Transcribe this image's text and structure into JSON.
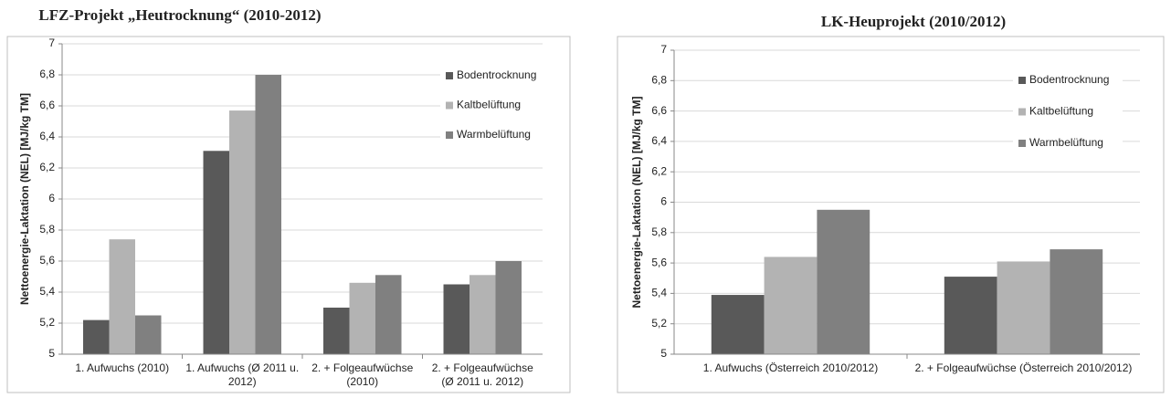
{
  "chart_data": [
    {
      "type": "bar",
      "title": "LFZ-Projekt „Heutrocknung“ (2010-2012)",
      "y_label": "Nettoenergie-Laktation (NEL) [MJ/kg TM]",
      "categories": [
        "1. Aufwuchs (2010)",
        "1. Aufwuchs (Ø 2011 u. 2012)",
        "2. + Folgeaufwüchse (2010)",
        "2. + Folgeaufwüchse (Ø 2011 u. 2012)"
      ],
      "series": [
        {
          "name": "Bodentrocknung",
          "color": "#595959",
          "values": [
            5.22,
            6.31,
            5.3,
            5.45
          ]
        },
        {
          "name": "Kaltbelüftung",
          "color": "#b3b3b3",
          "values": [
            5.74,
            6.57,
            5.46,
            5.51
          ]
        },
        {
          "name": "Warmbelüftung",
          "color": "#808080",
          "values": [
            5.25,
            6.8,
            5.51,
            5.6
          ]
        }
      ],
      "ylim": [
        5,
        7
      ],
      "yticks": [
        5,
        {
          "value": 5.2,
          "label": "5,2"
        },
        {
          "value": 5.4,
          "label": "5,4"
        },
        {
          "value": 5.6,
          "label": "5,6"
        },
        {
          "value": 5.8,
          "label": "5,8"
        },
        6,
        {
          "value": 6.2,
          "label": "6,2"
        },
        {
          "value": 6.4,
          "label": "6,4"
        },
        {
          "value": 6.6,
          "label": "6,6"
        },
        {
          "value": 6.8,
          "label": "6,8"
        },
        7
      ],
      "grid": true,
      "legend": "upper right"
    },
    {
      "type": "bar",
      "title": "LK-Heuprojekt (2010/2012)",
      "y_label": "Nettoenergie-Laktation (NEL) [MJ/kg TM]",
      "categories": [
        "1. Aufwuchs (Österreich 2010/2012)",
        "2. + Folgeaufwüchse (Österreich 2010/2012)"
      ],
      "series": [
        {
          "name": "Bodentrocknung",
          "color": "#595959",
          "values": [
            5.39,
            5.51
          ]
        },
        {
          "name": "Kaltbelüftung",
          "color": "#b3b3b3",
          "values": [
            5.64,
            5.61
          ]
        },
        {
          "name": "Warmbelüftung",
          "color": "#808080",
          "values": [
            5.95,
            5.69
          ]
        }
      ],
      "ylim": [
        5,
        7
      ],
      "yticks": [
        5,
        {
          "value": 5.2,
          "label": "5,2"
        },
        {
          "value": 5.4,
          "label": "5,4"
        },
        {
          "value": 5.6,
          "label": "5,6"
        },
        {
          "value": 5.8,
          "label": "5,8"
        },
        6,
        {
          "value": 6.2,
          "label": "6,2"
        },
        {
          "value": 6.4,
          "label": "6,4"
        },
        {
          "value": 6.6,
          "label": "6,6"
        },
        {
          "value": 6.8,
          "label": "6,8"
        },
        7
      ],
      "grid": true,
      "legend": "upper right"
    }
  ]
}
